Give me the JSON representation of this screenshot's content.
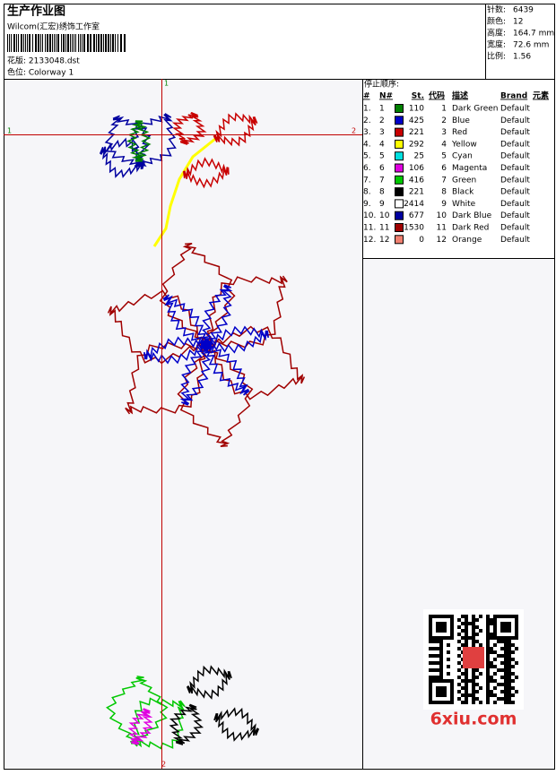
{
  "header": {
    "title": "生产作业图",
    "studio": "Wilcom(汇宏)绣饰工作室",
    "design_file": "花版: 2133048.dst",
    "colorway": "色位: Colorway 1"
  },
  "info": [
    {
      "label": "针数:",
      "value": "6439"
    },
    {
      "label": "颜色:",
      "value": "12"
    },
    {
      "label": "高度:",
      "value": "164.7 mm"
    },
    {
      "label": "宽度:",
      "value": "72.6 mm"
    },
    {
      "label": "比例:",
      "value": "1.56"
    }
  ],
  "markers": {
    "top": "1",
    "bottom": "2",
    "left": "1",
    "right": "2"
  },
  "table": {
    "title": "停止顺序:",
    "columns": [
      "#",
      "N#",
      "St.",
      "代码",
      "描述",
      "Brand",
      "元素"
    ],
    "rows": [
      {
        "index": "1.",
        "n": "1",
        "color": "#008000",
        "stitches": "110",
        "code": "1",
        "desc": "Dark Green",
        "brand": "Default"
      },
      {
        "index": "2.",
        "n": "2",
        "color": "#0000c8",
        "stitches": "425",
        "code": "2",
        "desc": "Blue",
        "brand": "Default"
      },
      {
        "index": "3.",
        "n": "3",
        "color": "#c80000",
        "stitches": "221",
        "code": "3",
        "desc": "Red",
        "brand": "Default"
      },
      {
        "index": "4.",
        "n": "4",
        "color": "#ffff00",
        "stitches": "292",
        "code": "4",
        "desc": "Yellow",
        "brand": "Default"
      },
      {
        "index": "5.",
        "n": "5",
        "color": "#00e0e0",
        "stitches": "25",
        "code": "5",
        "desc": "Cyan",
        "brand": "Default"
      },
      {
        "index": "6.",
        "n": "6",
        "color": "#e000e0",
        "stitches": "106",
        "code": "6",
        "desc": "Magenta",
        "brand": "Default"
      },
      {
        "index": "7.",
        "n": "7",
        "color": "#00c800",
        "stitches": "416",
        "code": "7",
        "desc": "Green",
        "brand": "Default"
      },
      {
        "index": "8.",
        "n": "8",
        "color": "#000000",
        "stitches": "221",
        "code": "8",
        "desc": "Black",
        "brand": "Default"
      },
      {
        "index": "9.",
        "n": "9",
        "color": "#ffffff",
        "stitches": "2414",
        "code": "9",
        "desc": "White",
        "brand": "Default"
      },
      {
        "index": "10.",
        "n": "10",
        "color": "#0000a0",
        "stitches": "677",
        "code": "10",
        "desc": "Dark Blue",
        "brand": "Default"
      },
      {
        "index": "11.",
        "n": "11",
        "color": "#a00000",
        "stitches": "1530",
        "code": "11",
        "desc": "Dark Red",
        "brand": "Default"
      },
      {
        "index": "12.",
        "n": "12",
        "color": "#f08070",
        "stitches": "0",
        "code": "12",
        "desc": "Orange",
        "brand": "Default"
      }
    ]
  },
  "watermark": "6xiu.com"
}
